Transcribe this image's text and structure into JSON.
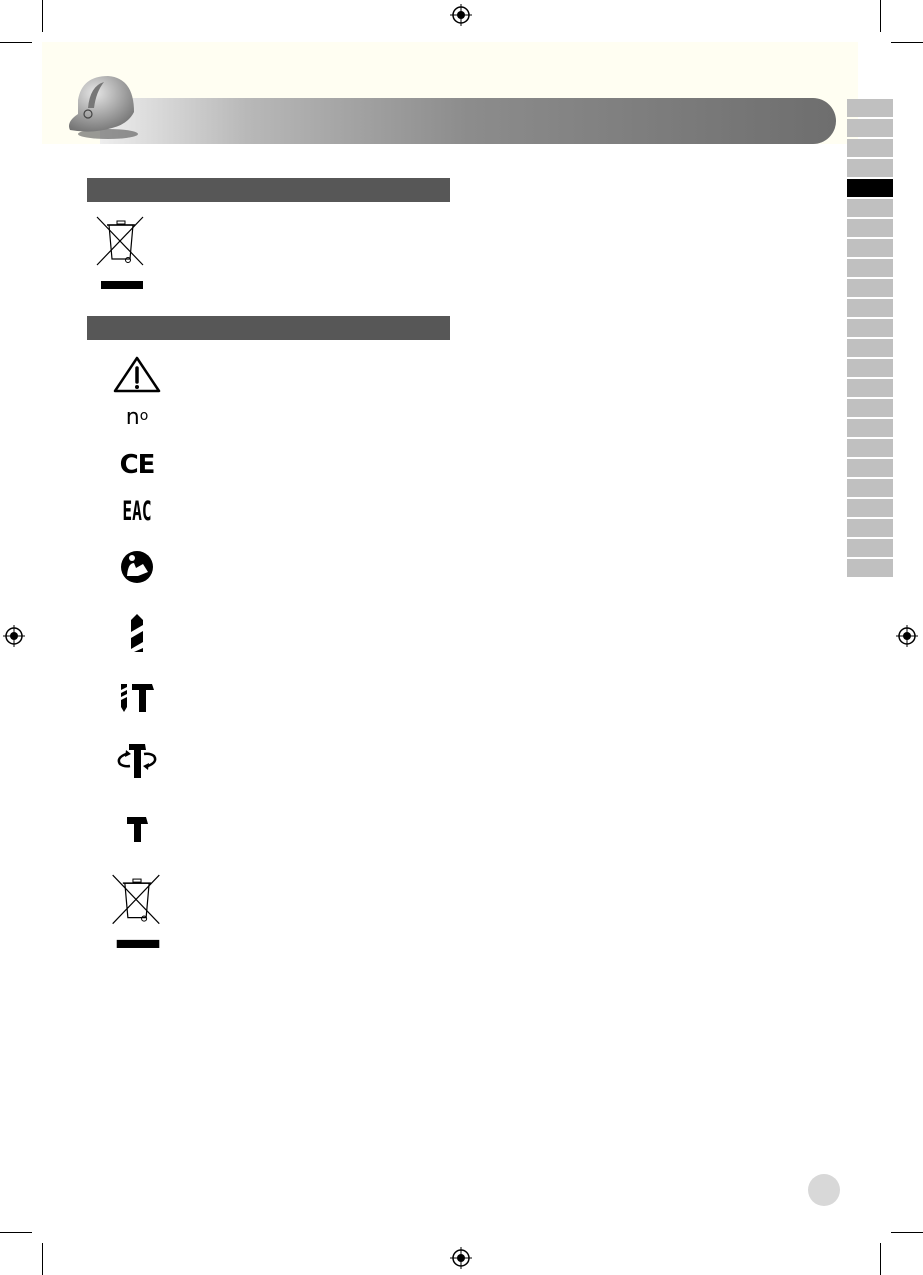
{
  "header": {
    "icon": "safety-helmet-icon",
    "accent_color": "#575757",
    "background_color": "#fffef2"
  },
  "side_tabs": {
    "count": 24,
    "active_index": 4,
    "active_color": "#000000",
    "inactive_color": "#c0c0c0"
  },
  "sections": [
    {
      "symbols": [
        {
          "icon": "weee-crossed-bin-icon"
        }
      ]
    },
    {
      "symbols": [
        {
          "icon": "warning-triangle-icon"
        },
        {
          "icon": "no-load-speed-icon",
          "text": "n",
          "subscript": "o"
        },
        {
          "icon": "ce-mark-icon",
          "text": "CE"
        },
        {
          "icon": "eac-mark-icon",
          "text": "EAC"
        },
        {
          "icon": "read-manual-icon"
        },
        {
          "icon": "drill-bit-icon"
        },
        {
          "icon": "hammer-drill-icon"
        },
        {
          "icon": "rotation-stop-icon"
        },
        {
          "icon": "hammer-only-icon"
        },
        {
          "icon": "weee-crossed-bin-icon"
        }
      ]
    }
  ]
}
